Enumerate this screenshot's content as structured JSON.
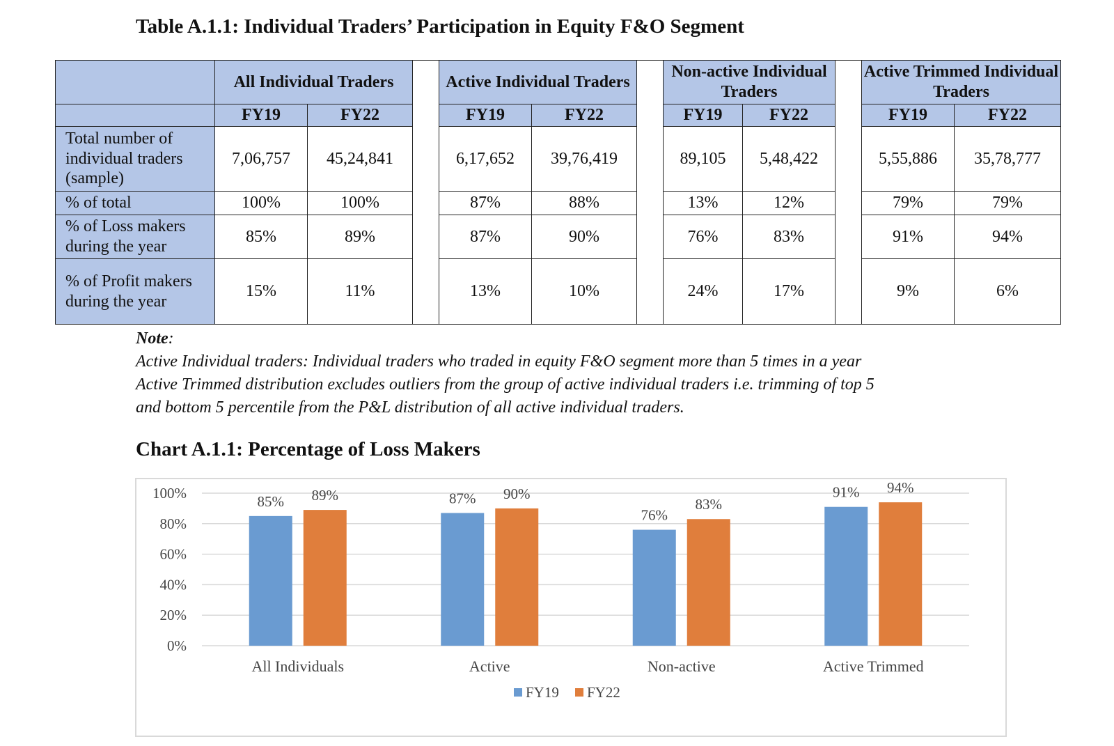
{
  "table": {
    "title": "Table A.1.1: Individual Traders’ Participation in Equity F&O Segment",
    "groups": [
      "All Individual Traders",
      "Active Individual Traders",
      "Non-active Individual Traders",
      "Active Trimmed Individual Traders"
    ],
    "subheaders": [
      "FY19",
      "FY22"
    ],
    "rows": [
      {
        "label": "Total number of individual traders (sample)",
        "values": [
          "7,06,757",
          "45,24,841",
          "6,17,652",
          "39,76,419",
          "89,105",
          "5,48,422",
          "5,55,886",
          "35,78,777"
        ]
      },
      {
        "label": "% of total",
        "values": [
          "100%",
          "100%",
          "87%",
          "88%",
          "13%",
          "12%",
          "79%",
          "79%"
        ]
      },
      {
        "label": "% of Loss makers during the year",
        "values": [
          "85%",
          "89%",
          "87%",
          "90%",
          "76%",
          "83%",
          "91%",
          "94%"
        ]
      },
      {
        "label": "% of Profit makers during the year",
        "values": [
          "15%",
          "11%",
          "13%",
          "10%",
          "24%",
          "17%",
          "9%",
          "6%"
        ]
      }
    ]
  },
  "note": {
    "title": "Note",
    "lines": [
      "Active Individual traders: Individual traders who traded in equity F&O segment more than 5 times in a year",
      "Active Trimmed distribution excludes outliers from the group of active individual traders i.e. trimming of top 5",
      "and bottom 5 percentile from the P&L distribution of all active individual traders."
    ]
  },
  "chart_data": {
    "type": "bar",
    "title": "Chart A.1.1: Percentage of Loss Makers",
    "categories": [
      "All Individuals",
      "Active",
      "Non-active",
      "Active Trimmed"
    ],
    "series": [
      {
        "name": "FY19",
        "values": [
          85,
          87,
          76,
          91
        ],
        "labels": [
          "85%",
          "87%",
          "76%",
          "91%"
        ],
        "color": "#6a9bd1"
      },
      {
        "name": "FY22",
        "values": [
          89,
          90,
          83,
          94
        ],
        "labels": [
          "89%",
          "90%",
          "83%",
          "94%"
        ],
        "color": "#e07e3c"
      }
    ],
    "yticks": [
      0,
      20,
      40,
      60,
      80,
      100
    ],
    "ytick_labels": [
      "0%",
      "20%",
      "40%",
      "60%",
      "80%",
      "100%"
    ],
    "ylim": [
      0,
      100
    ],
    "grid": true,
    "legend": "bottom-center"
  }
}
